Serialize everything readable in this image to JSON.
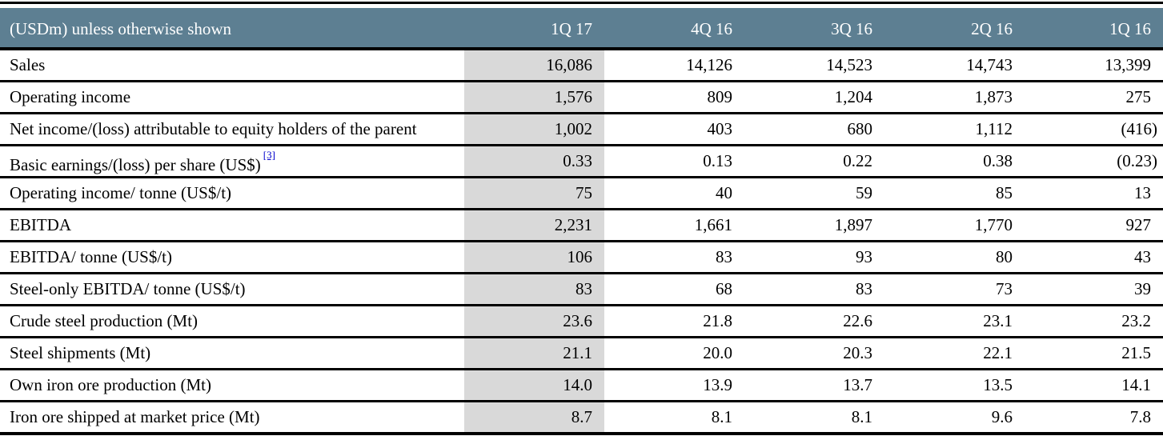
{
  "table": {
    "unit_label": "(USDm) unless otherwise shown",
    "columns": [
      "1Q 17",
      "4Q 16",
      "3Q 16",
      "2Q 16",
      "1Q 16"
    ],
    "highlighted_column": "1Q 17",
    "rows": [
      {
        "label": "Sales",
        "values": [
          "16,086",
          "14,126",
          "14,523",
          "14,743",
          "13,399"
        ]
      },
      {
        "label": "Operating income",
        "values": [
          "1,576",
          "809",
          "1,204",
          "1,873",
          "275"
        ]
      },
      {
        "label": "Net income/(loss) attributable to equity holders of the parent",
        "values": [
          "1,002",
          "403",
          "680",
          "1,112",
          "(416)"
        ]
      },
      {
        "label": "Basic earnings/(loss) per share (US$)",
        "footnote": "[3]",
        "values": [
          "0.33",
          "0.13",
          "0.22",
          "0.38",
          "(0.23)"
        ]
      },
      {
        "label": "Operating income/ tonne (US$/t)",
        "values": [
          "75",
          "40",
          "59",
          "85",
          "13"
        ]
      },
      {
        "label": "EBITDA",
        "values": [
          "2,231",
          "1,661",
          "1,897",
          "1,770",
          "927"
        ]
      },
      {
        "label": "EBITDA/ tonne (US$/t)",
        "values": [
          "106",
          "83",
          "93",
          "80",
          "43"
        ]
      },
      {
        "label": "Steel-only EBITDA/ tonne (US$/t)",
        "values": [
          "83",
          "68",
          "83",
          "73",
          "39"
        ]
      },
      {
        "label": "Crude steel production (Mt)",
        "values": [
          "23.6",
          "21.8",
          "22.6",
          "23.1",
          "23.2"
        ]
      },
      {
        "label": "Steel shipments (Mt)",
        "values": [
          "21.1",
          "20.0",
          "20.3",
          "22.1",
          "21.5"
        ]
      },
      {
        "label": "Own iron ore production (Mt)",
        "values": [
          "14.0",
          "13.9",
          "13.7",
          "13.5",
          "14.1"
        ]
      },
      {
        "label": "Iron ore shipped at market price (Mt)",
        "values": [
          "8.7",
          "8.1",
          "8.1",
          "9.6",
          "7.8"
        ]
      }
    ]
  },
  "colors": {
    "header_background": "#5d7f92",
    "header_text": "#ffffff",
    "highlight_column_background": "#d9d9d9",
    "rule": "#000000",
    "footnote_link": "#0000cc"
  }
}
